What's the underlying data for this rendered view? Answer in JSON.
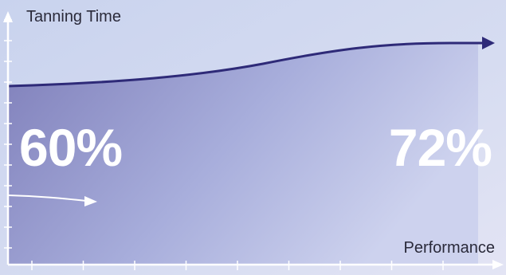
{
  "chart_data": {
    "type": "area",
    "title": "",
    "xlabel": "Performance",
    "ylabel": "Tanning Time",
    "annotations": {
      "start_value": "60%",
      "end_value": "72%"
    },
    "grid": false,
    "legend": "none"
  },
  "colors": {
    "background_light": "#cdd6ee",
    "area_fill": "#8080b8",
    "curve": "#2e2a78",
    "axis": "#ffffff",
    "small_arrow": "#ffffff"
  }
}
